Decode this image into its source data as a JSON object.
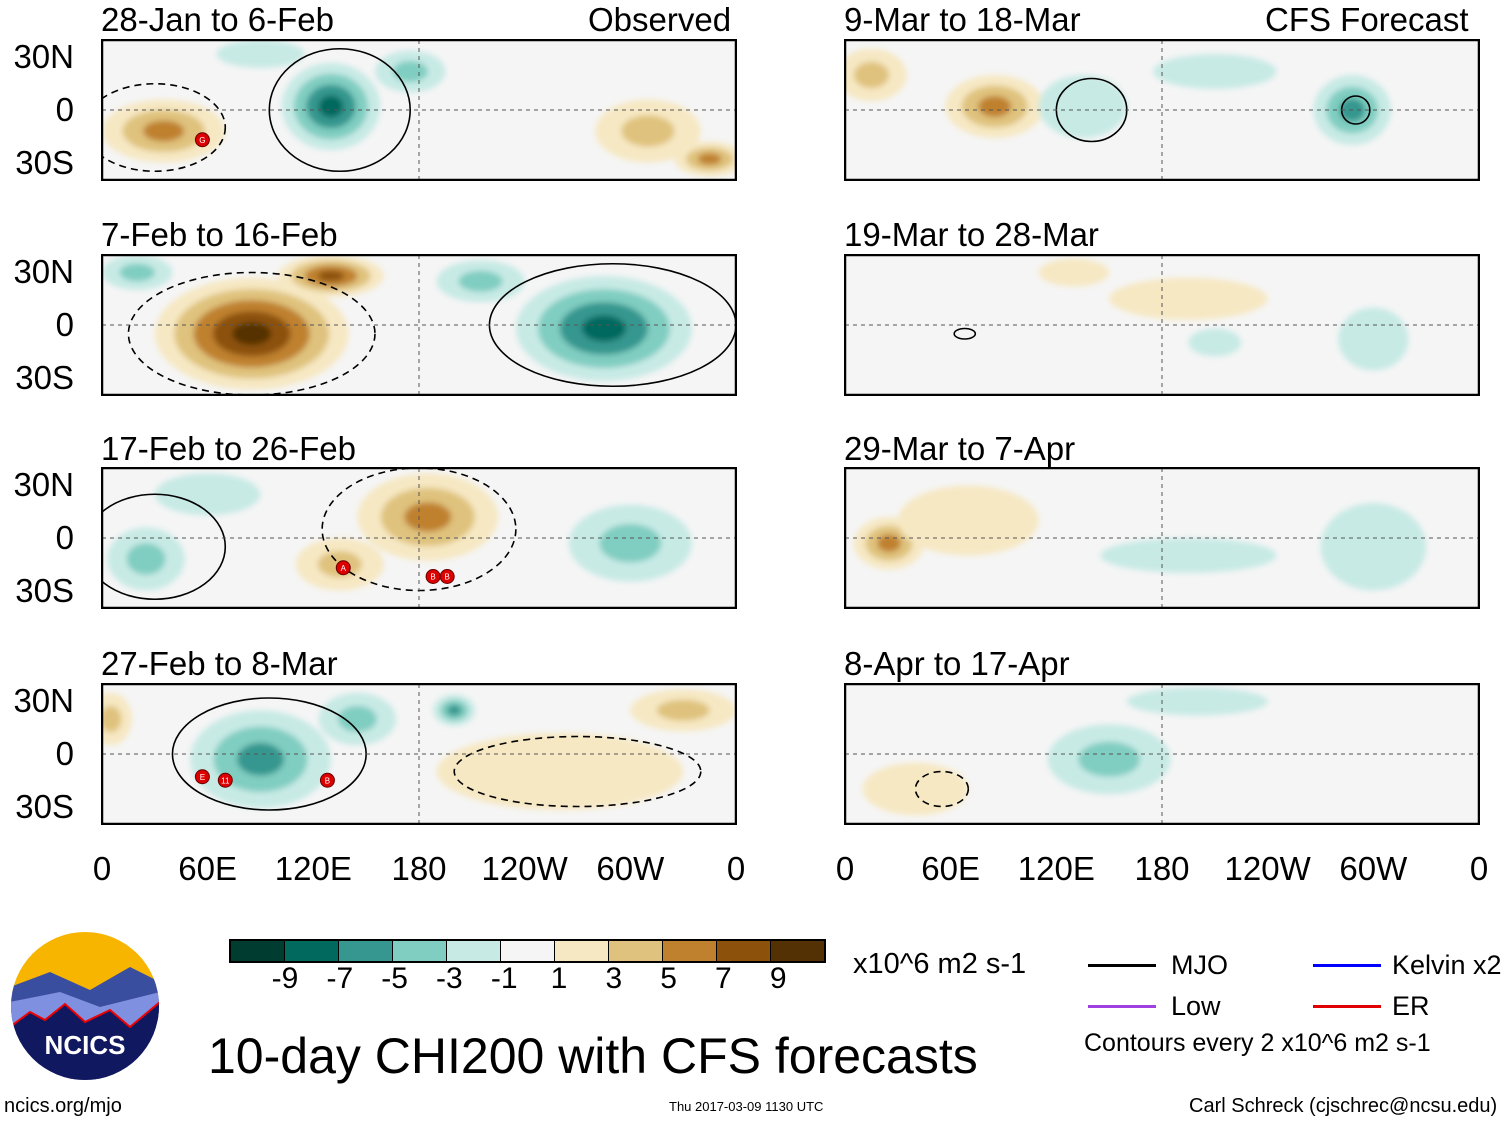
{
  "header": {
    "observed_label": "Observed",
    "forecast_label": "CFS Forecast"
  },
  "lat_labels": [
    "30N",
    "0",
    "30S"
  ],
  "lon_labels": [
    "0",
    "60E",
    "120E",
    "180",
    "120W",
    "60W",
    "0"
  ],
  "colorbar": {
    "colors": [
      "#013c30",
      "#02695e",
      "#35978f",
      "#80cdc1",
      "#c7eae5",
      "#f5f5f5",
      "#f6e8c3",
      "#dfc27d",
      "#bf812d",
      "#8c510a",
      "#543005"
    ],
    "labels": [
      "-9",
      "-7",
      "-5",
      "-3",
      "-1",
      "1",
      "3",
      "5",
      "7",
      "9"
    ],
    "units": "x10^6 m2 s-1"
  },
  "legend": {
    "mjo": "MJO",
    "kelvin": "Kelvin x2",
    "low": "Low",
    "er": "ER",
    "contours": "Contours every 2 x10^6 m2 s-1",
    "colors": {
      "mjo": "#000000",
      "kelvin": "#0000ff",
      "low": "#a040e0",
      "er": "#e00000"
    }
  },
  "title": "10-day CHI200 with CFS forecasts",
  "footer": {
    "site": "ncics.org/mjo",
    "timestamp": "Thu 2017-03-09 1130 UTC",
    "author": "Carl Schreck (cjschrec@ncsu.edu)"
  },
  "logo_text": "NCICS",
  "chart_data": {
    "type": "heatmap",
    "lon_range": [
      0,
      360
    ],
    "lat_range": [
      -40,
      40
    ],
    "panels": [
      {
        "period": "28-Jan to 6-Feb",
        "anoms": [
          {
            "lon": 35,
            "lat": -12,
            "v": 6,
            "rl": 35,
            "rt": 18
          },
          {
            "lon": 130,
            "lat": 2,
            "v": -8,
            "rl": 28,
            "rt": 25
          },
          {
            "lon": 175,
            "lat": 22,
            "v": -5,
            "rl": 20,
            "rt": 12
          },
          {
            "lon": 90,
            "lat": 32,
            "v": -3,
            "rl": 25,
            "rt": 8
          },
          {
            "lon": 310,
            "lat": -12,
            "v": 4,
            "rl": 30,
            "rt": 18
          },
          {
            "lon": 345,
            "lat": -28,
            "v": 6,
            "rl": 20,
            "rt": 10
          }
        ],
        "contours": [
          {
            "lon": 135,
            "lat": 0,
            "rl": 40,
            "rt": 35,
            "neg": false
          },
          {
            "lon": 30,
            "lat": -10,
            "rl": 40,
            "rt": 25,
            "neg": true
          }
        ],
        "storms": [
          {
            "lon": 57,
            "lat": -17,
            "label": "G"
          }
        ]
      },
      {
        "period": "7-Feb to 16-Feb",
        "anoms": [
          {
            "lon": 85,
            "lat": -5,
            "v": 10,
            "rl": 55,
            "rt": 32
          },
          {
            "lon": 130,
            "lat": 28,
            "v": 8,
            "rl": 30,
            "rt": 12
          },
          {
            "lon": 285,
            "lat": -2,
            "v": -9,
            "rl": 50,
            "rt": 30
          },
          {
            "lon": 215,
            "lat": 25,
            "v": -5,
            "rl": 25,
            "rt": 12
          },
          {
            "lon": 20,
            "lat": 30,
            "v": -4,
            "rl": 20,
            "rt": 10
          }
        ],
        "contours": [
          {
            "lon": 85,
            "lat": -5,
            "rl": 70,
            "rt": 35,
            "neg": true
          },
          {
            "lon": 290,
            "lat": 0,
            "rl": 70,
            "rt": 35,
            "neg": false
          }
        ],
        "storms": []
      },
      {
        "period": "17-Feb to 26-Feb",
        "anoms": [
          {
            "lon": 185,
            "lat": 12,
            "v": 7,
            "rl": 40,
            "rt": 25
          },
          {
            "lon": 135,
            "lat": -15,
            "v": 5,
            "rl": 25,
            "rt": 15
          },
          {
            "lon": 25,
            "lat": -12,
            "v": -5,
            "rl": 22,
            "rt": 18
          },
          {
            "lon": 300,
            "lat": -3,
            "v": -5,
            "rl": 35,
            "rt": 22
          },
          {
            "lon": 60,
            "lat": 25,
            "v": -3,
            "rl": 30,
            "rt": 12
          }
        ],
        "contours": [
          {
            "lon": 30,
            "lat": -5,
            "rl": 40,
            "rt": 30,
            "neg": false
          },
          {
            "lon": 180,
            "lat": 5,
            "rl": 55,
            "rt": 35,
            "neg": true
          }
        ],
        "storms": [
          {
            "lon": 137,
            "lat": -17,
            "label": "A"
          },
          {
            "lon": 188,
            "lat": -22,
            "label": "B"
          },
          {
            "lon": 196,
            "lat": -22,
            "label": "B"
          }
        ]
      },
      {
        "period": "27-Feb to 8-Mar",
        "anoms": [
          {
            "lon": 90,
            "lat": -3,
            "v": -6,
            "rl": 40,
            "rt": 28
          },
          {
            "lon": 200,
            "lat": 25,
            "v": -7,
            "rl": 12,
            "rt": 9
          },
          {
            "lon": 145,
            "lat": 20,
            "v": -4,
            "rl": 22,
            "rt": 15
          },
          {
            "lon": 260,
            "lat": -10,
            "v": 3,
            "rl": 70,
            "rt": 22
          },
          {
            "lon": 330,
            "lat": 25,
            "v": 4,
            "rl": 30,
            "rt": 12
          },
          {
            "lon": 5,
            "lat": 20,
            "v": 4,
            "rl": 12,
            "rt": 15
          }
        ],
        "contours": [
          {
            "lon": 95,
            "lat": 0,
            "rl": 55,
            "rt": 32,
            "neg": false
          },
          {
            "lon": 270,
            "lat": -10,
            "rl": 70,
            "rt": 20,
            "neg": true
          }
        ],
        "storms": [
          {
            "lon": 57,
            "lat": -13,
            "label": "E"
          },
          {
            "lon": 70,
            "lat": -15,
            "label": "11"
          },
          {
            "lon": 128,
            "lat": -15,
            "label": "B"
          }
        ]
      },
      {
        "period": "9-Mar to 18-Mar",
        "anoms": [
          {
            "lon": 85,
            "lat": 2,
            "v": 6,
            "rl": 28,
            "rt": 18
          },
          {
            "lon": 15,
            "lat": 20,
            "v": 4,
            "rl": 20,
            "rt": 15
          },
          {
            "lon": 288,
            "lat": 0,
            "v": -7,
            "rl": 22,
            "rt": 20
          },
          {
            "lon": 135,
            "lat": 2,
            "v": -3,
            "rl": 25,
            "rt": 18
          },
          {
            "lon": 210,
            "lat": 22,
            "v": -3,
            "rl": 35,
            "rt": 10
          }
        ],
        "contours": [
          {
            "lon": 290,
            "lat": 0,
            "rl": 8,
            "rt": 8,
            "neg": false
          },
          {
            "lon": 140,
            "lat": 0,
            "rl": 20,
            "rt": 18,
            "neg": false
          }
        ],
        "storms": []
      },
      {
        "period": "19-Mar to 28-Mar",
        "anoms": [
          {
            "lon": 195,
            "lat": 15,
            "v": 3,
            "rl": 45,
            "rt": 12
          },
          {
            "lon": 130,
            "lat": 30,
            "v": 3,
            "rl": 20,
            "rt": 8
          },
          {
            "lon": 300,
            "lat": -8,
            "v": -3,
            "rl": 20,
            "rt": 18
          },
          {
            "lon": 210,
            "lat": -10,
            "v": -3,
            "rl": 15,
            "rt": 8
          }
        ],
        "contours": [
          {
            "lon": 68,
            "lat": -5,
            "rl": 6,
            "rt": 3,
            "neg": false
          }
        ],
        "storms": []
      },
      {
        "period": "29-Mar to 7-Apr",
        "anoms": [
          {
            "lon": 25,
            "lat": -3,
            "v": 6,
            "rl": 20,
            "rt": 15
          },
          {
            "lon": 70,
            "lat": 10,
            "v": 3,
            "rl": 40,
            "rt": 20
          },
          {
            "lon": 195,
            "lat": -10,
            "v": -3,
            "rl": 50,
            "rt": 10
          },
          {
            "lon": 300,
            "lat": -5,
            "v": -3,
            "rl": 30,
            "rt": 25
          }
        ],
        "contours": [],
        "storms": []
      },
      {
        "period": "8-Apr to 17-Apr",
        "anoms": [
          {
            "lon": 150,
            "lat": -3,
            "v": -4,
            "rl": 35,
            "rt": 20
          },
          {
            "lon": 40,
            "lat": -20,
            "v": 3,
            "rl": 30,
            "rt": 15
          },
          {
            "lon": 200,
            "lat": 30,
            "v": -3,
            "rl": 40,
            "rt": 8
          }
        ],
        "contours": [
          {
            "lon": 55,
            "lat": -20,
            "rl": 15,
            "rt": 10,
            "neg": true
          }
        ],
        "storms": []
      }
    ]
  }
}
